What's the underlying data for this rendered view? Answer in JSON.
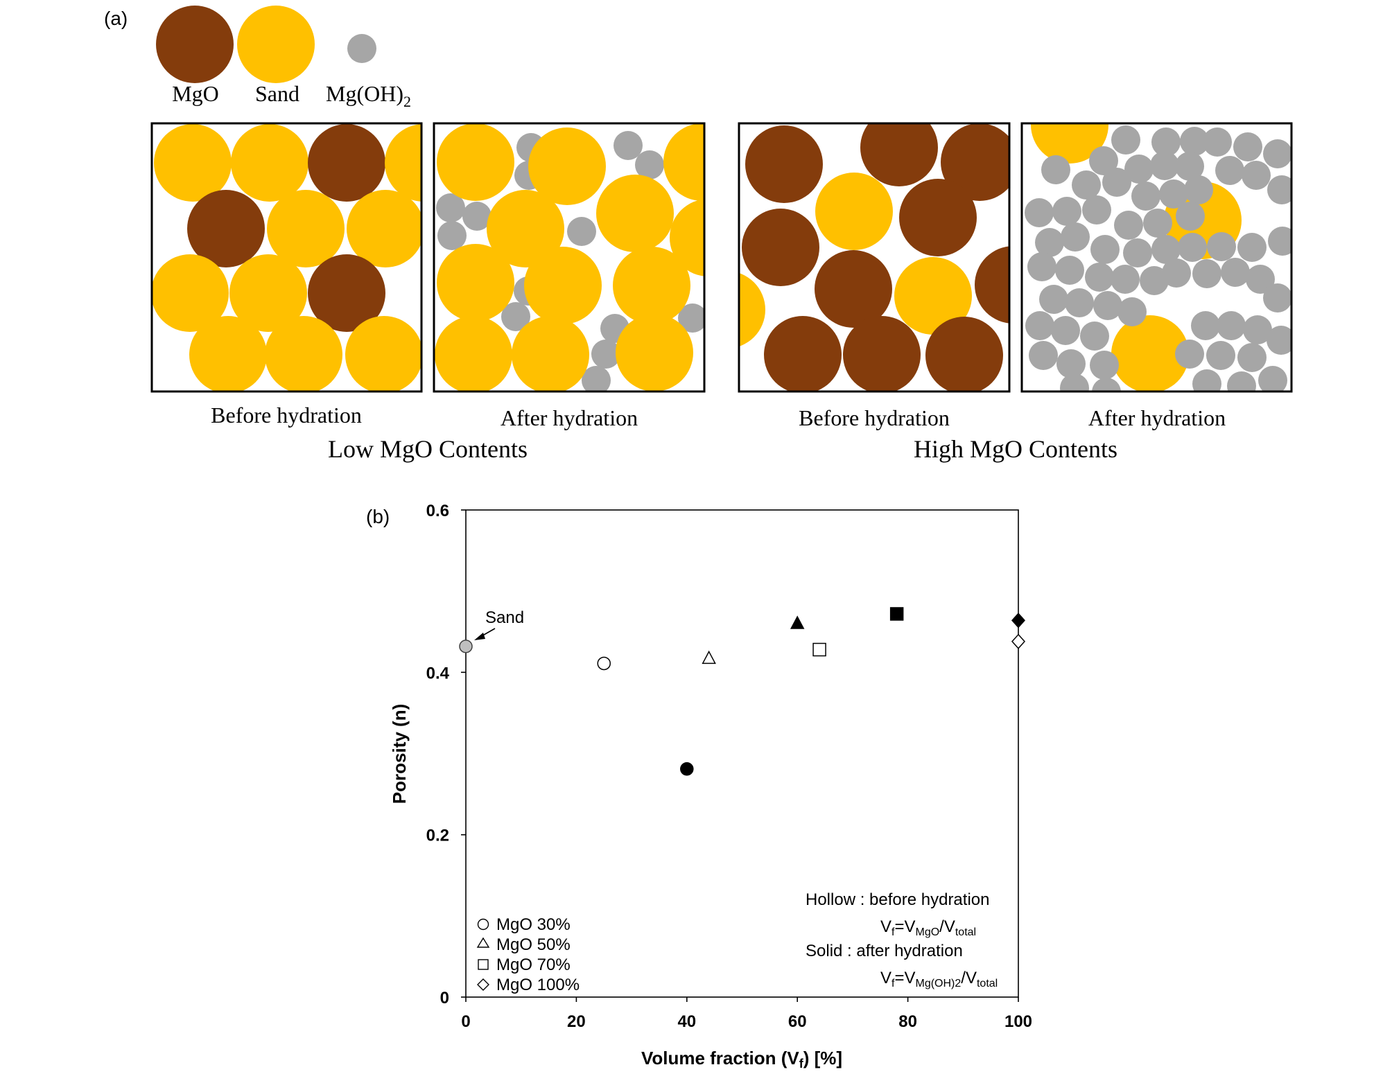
{
  "panel_a": {
    "label": "(a)",
    "legend": {
      "mgo": "MgO",
      "sand": "Sand",
      "mgoh2_main": "Mg(OH)",
      "mgoh2_sub": "2"
    },
    "captions": {
      "low_before": "Before hydration",
      "low_after": "After hydration",
      "high_before": "Before hydration",
      "high_after": "After hydration"
    },
    "group_titles": {
      "low": "Low MgO  Contents",
      "high": "High MgO  Contents"
    },
    "colors": {
      "mgo": "#843c0c",
      "sand": "#ffc000",
      "mgoh2": "#a6a6a6"
    }
  },
  "chart_data": {
    "type": "scatter",
    "panel_label": "(b)",
    "xlabel": "Volume fraction (V",
    "xlabel_sub": "f",
    "xlabel_tail": ") [%]",
    "ylabel": "Porosity (n)",
    "xlim": [
      0,
      100
    ],
    "ylim": [
      0,
      0.6
    ],
    "xticks": [
      "0",
      "20",
      "40",
      "60",
      "80",
      "100"
    ],
    "yticks": [
      "0",
      "0.2",
      "0.4",
      "0.6"
    ],
    "grid": false,
    "series": [
      {
        "name": "Sand",
        "marker": "circle",
        "fill": "gray",
        "x": 0,
        "y": 0.432
      },
      {
        "name": "MgO 30% before hydration",
        "marker": "circle",
        "fill": "hollow",
        "x": 25,
        "y": 0.411
      },
      {
        "name": "MgO 30% after hydration",
        "marker": "circle",
        "fill": "solid",
        "x": 40,
        "y": 0.281
      },
      {
        "name": "MgO 50% before hydration",
        "marker": "triangle",
        "fill": "hollow",
        "x": 44,
        "y": 0.417
      },
      {
        "name": "MgO 50% after hydration",
        "marker": "triangle",
        "fill": "solid",
        "x": 60,
        "y": 0.46
      },
      {
        "name": "MgO 70% before hydration",
        "marker": "square",
        "fill": "hollow",
        "x": 64,
        "y": 0.428
      },
      {
        "name": "MgO 70% after hydration",
        "marker": "square",
        "fill": "solid",
        "x": 78,
        "y": 0.472
      },
      {
        "name": "MgO 100% before hydration",
        "marker": "diamond",
        "fill": "hollow",
        "x": 100,
        "y": 0.438
      },
      {
        "name": "MgO 100% after hydration",
        "marker": "diamond",
        "fill": "solid",
        "x": 100,
        "y": 0.464
      }
    ],
    "annotation_sand": "Sand",
    "legend": [
      "MgO 30%",
      "MgO 50%",
      "MgO 70%",
      "MgO 100%"
    ],
    "notes": {
      "hollow": "Hollow : before hydration",
      "solid": "Solid    : after hydration",
      "vf1_v": "V",
      "vf1_f": "f",
      "vf1_eq": "=V",
      "vf1_num": "MgO",
      "vf1_slash": "/V",
      "vf1_den": "total",
      "vf2_v": "V",
      "vf2_f": "f",
      "vf2_eq": "=V",
      "vf2_num": "Mg(OH)2",
      "vf2_slash": "/V",
      "vf2_den": "total"
    }
  }
}
